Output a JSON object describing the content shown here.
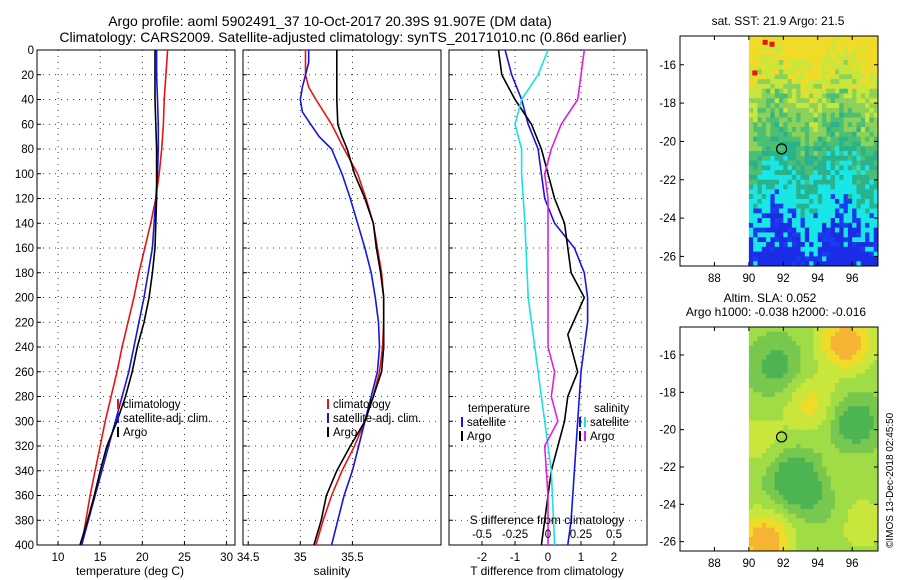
{
  "header": {
    "title_line1": "Argo profile: aoml 5902491_37 10-Oct-2017 20.39S 91.907E (DM data)",
    "title_line2": "Climatology: CARS2009. Satellite-adjusted climatology: synTS_20171010.nc (0.86d earlier)"
  },
  "credit": "©IMOS 13-Dec-2018 02:45:50",
  "colors": {
    "climatology": "#e8140f",
    "satellite": "#1616e0",
    "argo": "#000000",
    "s_diff_clim": "#e11ee1",
    "s_diff_sat": "#19e1e6"
  },
  "chart_data": [
    {
      "type": "line",
      "name": "temperature-profile",
      "xlabel": "temperature (deg C)",
      "ylabel": "",
      "xlim": [
        7.5,
        31
      ],
      "ylim": [
        400,
        0
      ],
      "xticks": [
        "10",
        "15",
        "20",
        "25",
        "30"
      ],
      "yticks": [
        "0",
        "20",
        "40",
        "60",
        "80",
        "100",
        "120",
        "140",
        "160",
        "180",
        "200",
        "220",
        "240",
        "260",
        "280",
        "300",
        "320",
        "340",
        "360",
        "380",
        "400"
      ],
      "legend": [
        "climatology",
        "satellite-adj. clim.",
        "Argo"
      ],
      "series": [
        {
          "name": "climatology",
          "color_key": "climatology",
          "points": [
            [
              23.0,
              0
            ],
            [
              22.8,
              20
            ],
            [
              22.6,
              40
            ],
            [
              22.5,
              60
            ],
            [
              22.3,
              80
            ],
            [
              22.0,
              100
            ],
            [
              21.6,
              120
            ],
            [
              21.0,
              140
            ],
            [
              20.3,
              160
            ],
            [
              19.6,
              180
            ],
            [
              19.0,
              200
            ],
            [
              18.3,
              220
            ],
            [
              17.6,
              240
            ],
            [
              17.0,
              260
            ],
            [
              16.3,
              280
            ],
            [
              15.6,
              300
            ],
            [
              15.0,
              320
            ],
            [
              14.4,
              340
            ],
            [
              13.8,
              360
            ],
            [
              13.3,
              380
            ],
            [
              12.8,
              400
            ]
          ]
        },
        {
          "name": "satellite-adj. clim.",
          "color_key": "satellite",
          "points": [
            [
              21.7,
              0
            ],
            [
              21.7,
              20
            ],
            [
              21.8,
              40
            ],
            [
              21.9,
              60
            ],
            [
              21.9,
              80
            ],
            [
              21.8,
              100
            ],
            [
              21.6,
              120
            ],
            [
              21.4,
              140
            ],
            [
              21.2,
              160
            ],
            [
              20.7,
              180
            ],
            [
              20.2,
              200
            ],
            [
              19.6,
              220
            ],
            [
              19.0,
              240
            ],
            [
              18.4,
              260
            ],
            [
              17.6,
              280
            ],
            [
              16.8,
              300
            ],
            [
              16.0,
              320
            ],
            [
              15.2,
              340
            ],
            [
              14.4,
              360
            ],
            [
              13.6,
              380
            ],
            [
              12.8,
              400
            ]
          ]
        },
        {
          "name": "Argo",
          "color_key": "argo",
          "points": [
            [
              21.5,
              0
            ],
            [
              21.5,
              20
            ],
            [
              21.5,
              40
            ],
            [
              21.6,
              60
            ],
            [
              21.7,
              80
            ],
            [
              21.7,
              100
            ],
            [
              21.7,
              120
            ],
            [
              21.6,
              140
            ],
            [
              21.5,
              160
            ],
            [
              21.2,
              180
            ],
            [
              20.8,
              200
            ],
            [
              20.2,
              220
            ],
            [
              19.4,
              240
            ],
            [
              18.8,
              260
            ],
            [
              18.0,
              280
            ],
            [
              17.0,
              300
            ],
            [
              15.8,
              320
            ],
            [
              15.0,
              340
            ],
            [
              14.3,
              360
            ],
            [
              13.5,
              380
            ],
            [
              12.6,
              400
            ]
          ]
        }
      ]
    },
    {
      "type": "line",
      "name": "salinity-profile",
      "xlabel": "salinity",
      "ylabel": "",
      "xlim": [
        34.45,
        36.35
      ],
      "ylim": [
        400,
        0
      ],
      "xticks": [
        "34.5",
        "35",
        "35.5"
      ],
      "legend": [
        "climatology",
        "satellite-adj. clim.",
        "Argo"
      ],
      "series": [
        {
          "name": "climatology",
          "color_key": "climatology",
          "points": [
            [
              35.05,
              0
            ],
            [
              35.05,
              20
            ],
            [
              35.08,
              30
            ],
            [
              35.15,
              40
            ],
            [
              35.3,
              60
            ],
            [
              35.42,
              80
            ],
            [
              35.55,
              100
            ],
            [
              35.63,
              120
            ],
            [
              35.7,
              140
            ],
            [
              35.74,
              160
            ],
            [
              35.78,
              180
            ],
            [
              35.8,
              200
            ],
            [
              35.8,
              220
            ],
            [
              35.79,
              240
            ],
            [
              35.76,
              260
            ],
            [
              35.7,
              280
            ],
            [
              35.62,
              300
            ],
            [
              35.52,
              320
            ],
            [
              35.4,
              340
            ],
            [
              35.3,
              360
            ],
            [
              35.22,
              380
            ],
            [
              35.15,
              400
            ]
          ]
        },
        {
          "name": "satellite-adj. clim.",
          "color_key": "satellite",
          "points": [
            [
              35.08,
              0
            ],
            [
              35.08,
              10
            ],
            [
              35.02,
              30
            ],
            [
              35.0,
              40
            ],
            [
              35.02,
              50
            ],
            [
              35.1,
              60
            ],
            [
              35.18,
              70
            ],
            [
              35.3,
              80
            ],
            [
              35.4,
              100
            ],
            [
              35.48,
              120
            ],
            [
              35.55,
              140
            ],
            [
              35.62,
              160
            ],
            [
              35.68,
              180
            ],
            [
              35.72,
              200
            ],
            [
              35.75,
              220
            ],
            [
              35.76,
              240
            ],
            [
              35.74,
              260
            ],
            [
              35.68,
              280
            ],
            [
              35.62,
              300
            ],
            [
              35.56,
              320
            ],
            [
              35.5,
              340
            ],
            [
              35.42,
              360
            ],
            [
              35.36,
              380
            ],
            [
              35.3,
              400
            ]
          ]
        },
        {
          "name": "Argo",
          "color_key": "argo",
          "points": [
            [
              35.35,
              0
            ],
            [
              35.35,
              20
            ],
            [
              35.35,
              40
            ],
            [
              35.36,
              60
            ],
            [
              35.4,
              70
            ],
            [
              35.45,
              80
            ],
            [
              35.52,
              100
            ],
            [
              35.62,
              120
            ],
            [
              35.7,
              140
            ],
            [
              35.73,
              160
            ],
            [
              35.77,
              180
            ],
            [
              35.8,
              200
            ],
            [
              35.8,
              220
            ],
            [
              35.8,
              240
            ],
            [
              35.78,
              260
            ],
            [
              35.7,
              280
            ],
            [
              35.62,
              300
            ],
            [
              35.48,
              320
            ],
            [
              35.35,
              340
            ],
            [
              35.25,
              360
            ],
            [
              35.2,
              380
            ],
            [
              35.13,
              400
            ]
          ]
        }
      ]
    },
    {
      "type": "line",
      "name": "difference-profile",
      "xlabel": "T difference from climatology",
      "top_label": "S difference from climatology",
      "xlim": [
        -3,
        3
      ],
      "ylim": [
        400,
        0
      ],
      "xticks": [
        "-2",
        "-1",
        "0",
        "1",
        "2"
      ],
      "top_ticks": [
        "-0.5",
        "-0.25",
        "0",
        "0.25",
        "0.5"
      ],
      "legend_temperature_title": "temperature",
      "legend_salinity_title": "salinity",
      "legend_temperature": [
        "satellite",
        "Argo"
      ],
      "legend_salinity": [
        "satellite",
        "Argo"
      ],
      "series": [
        {
          "name": "T satellite",
          "color_key": "satellite",
          "points": [
            [
              -1.3,
              0
            ],
            [
              -1.1,
              20
            ],
            [
              -0.8,
              40
            ],
            [
              -0.6,
              60
            ],
            [
              -0.3,
              80
            ],
            [
              -0.2,
              100
            ],
            [
              -0.1,
              120
            ],
            [
              0.2,
              140
            ],
            [
              0.8,
              160
            ],
            [
              1.1,
              180
            ],
            [
              1.2,
              200
            ],
            [
              1.2,
              220
            ],
            [
              1.0,
              260
            ],
            [
              0.9,
              300
            ],
            [
              0.8,
              340
            ],
            [
              0.7,
              380
            ],
            [
              0.6,
              400
            ]
          ]
        },
        {
          "name": "T Argo",
          "color_key": "argo",
          "points": [
            [
              -1.5,
              0
            ],
            [
              -1.4,
              20
            ],
            [
              -1.0,
              40
            ],
            [
              -0.5,
              60
            ],
            [
              -0.2,
              80
            ],
            [
              0.0,
              100
            ],
            [
              0.2,
              120
            ],
            [
              0.5,
              140
            ],
            [
              0.6,
              160
            ],
            [
              0.7,
              180
            ],
            [
              1.1,
              200
            ],
            [
              0.6,
              230
            ],
            [
              0.9,
              260
            ],
            [
              0.6,
              280
            ],
            [
              0.5,
              300
            ],
            [
              0.3,
              320
            ],
            [
              0.1,
              340
            ],
            [
              0.0,
              360
            ],
            [
              -0.1,
              380
            ],
            [
              -0.2,
              400
            ]
          ]
        },
        {
          "name": "S satellite",
          "color_key": "s_diff_sat",
          "points": [
            [
              0.0,
              0
            ],
            [
              -0.3,
              20
            ],
            [
              -0.8,
              40
            ],
            [
              -1.0,
              60
            ],
            [
              -0.8,
              80
            ],
            [
              -0.8,
              100
            ],
            [
              -0.7,
              140
            ],
            [
              -0.6,
              200
            ],
            [
              -0.3,
              260
            ],
            [
              -0.1,
              300
            ],
            [
              0.1,
              340
            ],
            [
              0.2,
              400
            ]
          ]
        },
        {
          "name": "S Argo",
          "color_key": "s_diff_clim",
          "points": [
            [
              1.1,
              0
            ],
            [
              1.0,
              20
            ],
            [
              0.9,
              40
            ],
            [
              0.4,
              60
            ],
            [
              0.1,
              80
            ],
            [
              -0.1,
              100
            ],
            [
              0.0,
              120
            ],
            [
              0.0,
              150
            ],
            [
              0.0,
              180
            ],
            [
              0.0,
              200
            ],
            [
              0.0,
              240
            ],
            [
              0.2,
              260
            ],
            [
              0.1,
              280
            ],
            [
              0.3,
              300
            ],
            [
              -0.1,
              320
            ],
            [
              0.0,
              360
            ],
            [
              0.0,
              400
            ]
          ]
        }
      ]
    },
    {
      "type": "heatmap",
      "name": "sst-map",
      "title": "sat. SST: 21.9  Argo: 21.5",
      "xlim": [
        86,
        97.5
      ],
      "ylim": [
        -26.5,
        -14.5
      ],
      "xticks": [
        "88",
        "90",
        "92",
        "94",
        "96"
      ],
      "yticks": [
        "-16",
        "-18",
        "-20",
        "-22",
        "-24",
        "-26"
      ],
      "marker": {
        "lon": 91.9,
        "lat": -20.39
      }
    },
    {
      "type": "heatmap",
      "name": "sla-map",
      "title_line1": "Altim. SLA: 0.052",
      "title_line2": "Argo h1000: -0.038  h2000: -0.016",
      "xlim": [
        86,
        97.5
      ],
      "ylim": [
        -26.5,
        -14.5
      ],
      "xticks": [
        "88",
        "90",
        "92",
        "94",
        "96"
      ],
      "yticks": [
        "-16",
        "-18",
        "-20",
        "-22",
        "-24",
        "-26"
      ],
      "marker": {
        "lon": 91.9,
        "lat": -20.39
      }
    }
  ]
}
